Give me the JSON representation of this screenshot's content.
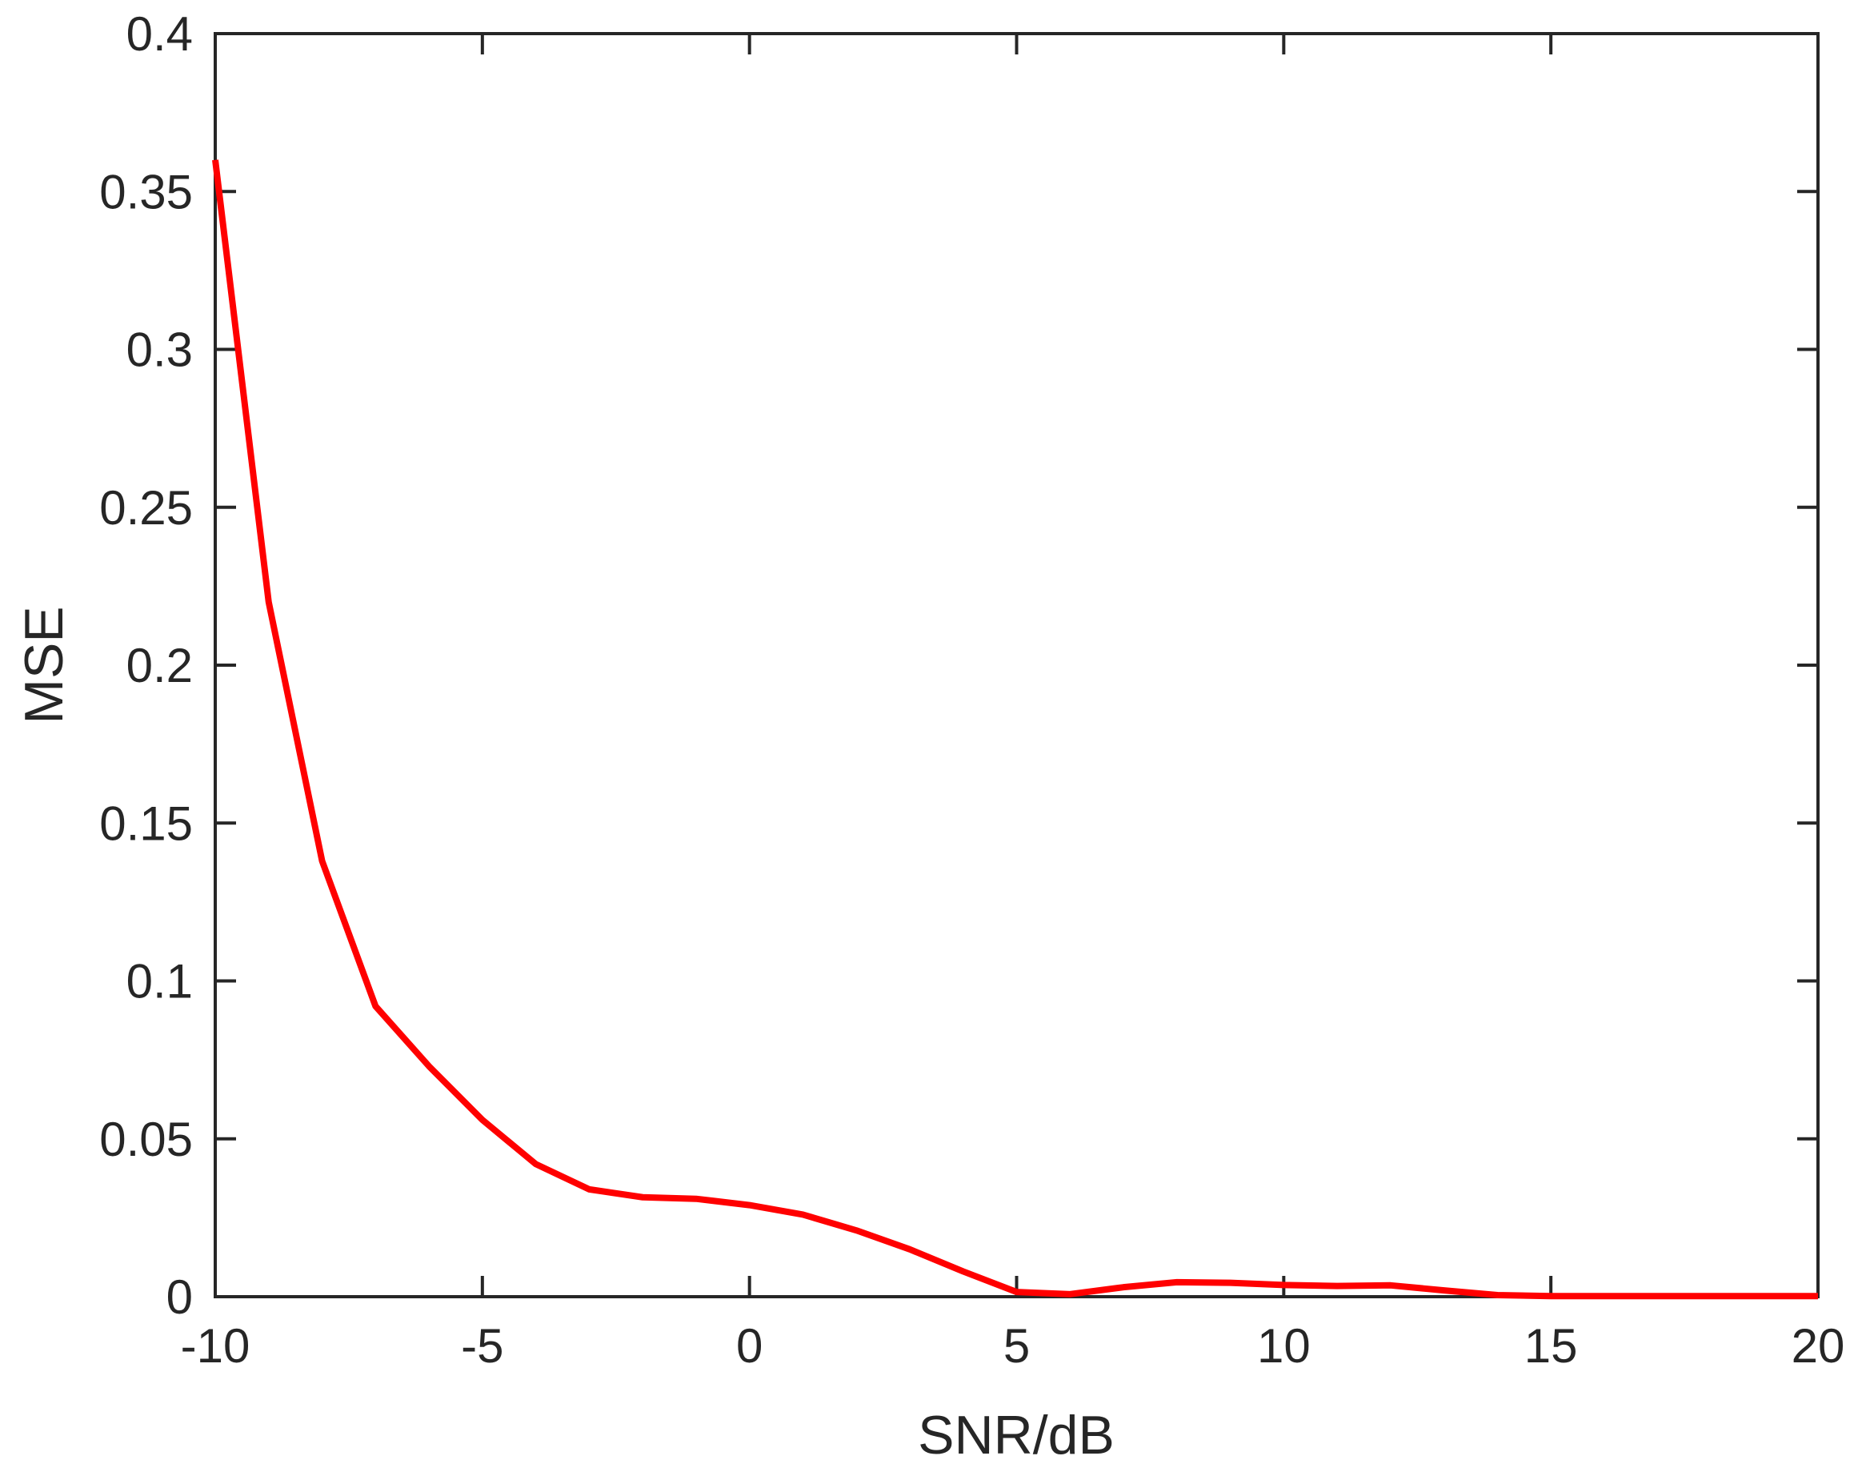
{
  "figure": {
    "background": "#ffffff"
  },
  "chart_data": {
    "type": "line",
    "title": "",
    "xlabel": "SNR/dB",
    "ylabel": "MSE",
    "xlim": [
      -10,
      20
    ],
    "ylim": [
      0,
      0.4
    ],
    "grid": false,
    "box": true,
    "legend": null,
    "colors": {
      "line": "#ff0000",
      "axis": "#262626",
      "text": "#262626",
      "background": "#ffffff"
    },
    "xticks": {
      "values": [
        -10,
        -5,
        0,
        5,
        10,
        15,
        20
      ],
      "labels": [
        "-10",
        "-5",
        "0",
        "5",
        "10",
        "15",
        "20"
      ]
    },
    "yticks": {
      "values": [
        0,
        0.05,
        0.1,
        0.15,
        0.2,
        0.25,
        0.3,
        0.35,
        0.4
      ],
      "labels": [
        "0",
        "0.05",
        "0.1",
        "0.15",
        "0.2",
        "0.25",
        "0.3",
        "0.35",
        "0.4"
      ]
    },
    "series": [
      {
        "name": "MSE",
        "x": [
          -10,
          -9,
          -8,
          -7,
          -6,
          -5,
          -4,
          -3,
          -2,
          -1,
          0,
          1,
          2,
          3,
          4,
          5,
          6,
          7,
          8,
          9,
          10,
          11,
          12,
          13,
          14,
          15,
          16,
          17,
          18,
          19,
          20
        ],
        "y": [
          0.36,
          0.22,
          0.138,
          0.092,
          0.073,
          0.056,
          0.042,
          0.034,
          0.0315,
          0.031,
          0.029,
          0.026,
          0.021,
          0.015,
          0.008,
          0.0015,
          0.0008,
          0.003,
          0.0046,
          0.0044,
          0.0037,
          0.0034,
          0.0036,
          0.002,
          0.0005,
          0.0002,
          0.0002,
          0.0002,
          0.0002,
          0.0002,
          0.0002
        ]
      }
    ]
  }
}
